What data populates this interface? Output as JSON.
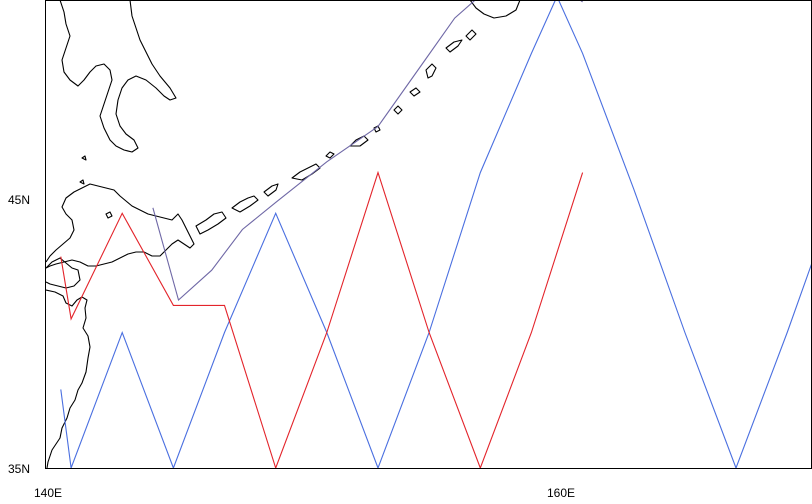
{
  "map": {
    "lat_labels": [
      "45N",
      "35N"
    ],
    "lon_labels": [
      "140E",
      "160E"
    ]
  },
  "legend_colors": {
    "survey_track_blue": "#4a6fe0",
    "survey_track_red": "#e3242b",
    "boundary_purple": "#6f68a6",
    "coastline": "#000000"
  },
  "chart_data": {
    "type": "map",
    "projection": "lon-lat",
    "lon_range": [
      140,
      160
    ],
    "lat_range": [
      35,
      45
    ],
    "features": [
      "coastline of Hokkaido and northern Honshu",
      "Kuril Islands",
      "southern Sakhalin"
    ],
    "tracks": [
      {
        "color": "blue",
        "points": [
          [
            140.6,
            37.9
          ],
          [
            141.0,
            35.0
          ],
          [
            143.0,
            40.0
          ],
          [
            145.0,
            35.0
          ],
          [
            147.0,
            40.0
          ],
          [
            149.0,
            44.4
          ],
          [
            151.0,
            40.0
          ],
          [
            153.0,
            35.0
          ],
          [
            155.0,
            40.0
          ],
          [
            157.0,
            45.9
          ],
          [
            159.0,
            50.3
          ],
          [
            160.0,
            52.4
          ],
          [
            161.0,
            50.3
          ],
          [
            163.0,
            45.3
          ],
          [
            165.0,
            40.0
          ],
          [
            167.0,
            35.0
          ],
          [
            169.0,
            40.0
          ],
          [
            171.0,
            45.3
          ]
        ]
      },
      {
        "color": "red",
        "points": [
          [
            140.6,
            42.8
          ],
          [
            141.0,
            40.5
          ],
          [
            143.0,
            44.4
          ],
          [
            145.0,
            41.0
          ],
          [
            147.0,
            41.0
          ],
          [
            149.0,
            35.0
          ],
          [
            151.0,
            40.0
          ],
          [
            153.0,
            45.9
          ],
          [
            155.0,
            40.0
          ],
          [
            157.0,
            35.0
          ],
          [
            159.0,
            40.0
          ],
          [
            161.0,
            45.9
          ]
        ]
      },
      {
        "color": "purple",
        "points": [
          [
            144.2,
            44.6
          ],
          [
            145.2,
            41.2
          ],
          [
            146.5,
            42.3
          ],
          [
            147.7,
            43.8
          ],
          [
            149.0,
            44.8
          ],
          [
            151.0,
            46.3
          ],
          [
            153.0,
            47.6
          ],
          [
            154.8,
            50.0
          ],
          [
            156.0,
            51.6
          ],
          [
            157.2,
            52.6
          ],
          [
            160.0,
            52.9
          ],
          [
            161.0,
            52.2
          ]
        ]
      }
    ]
  }
}
